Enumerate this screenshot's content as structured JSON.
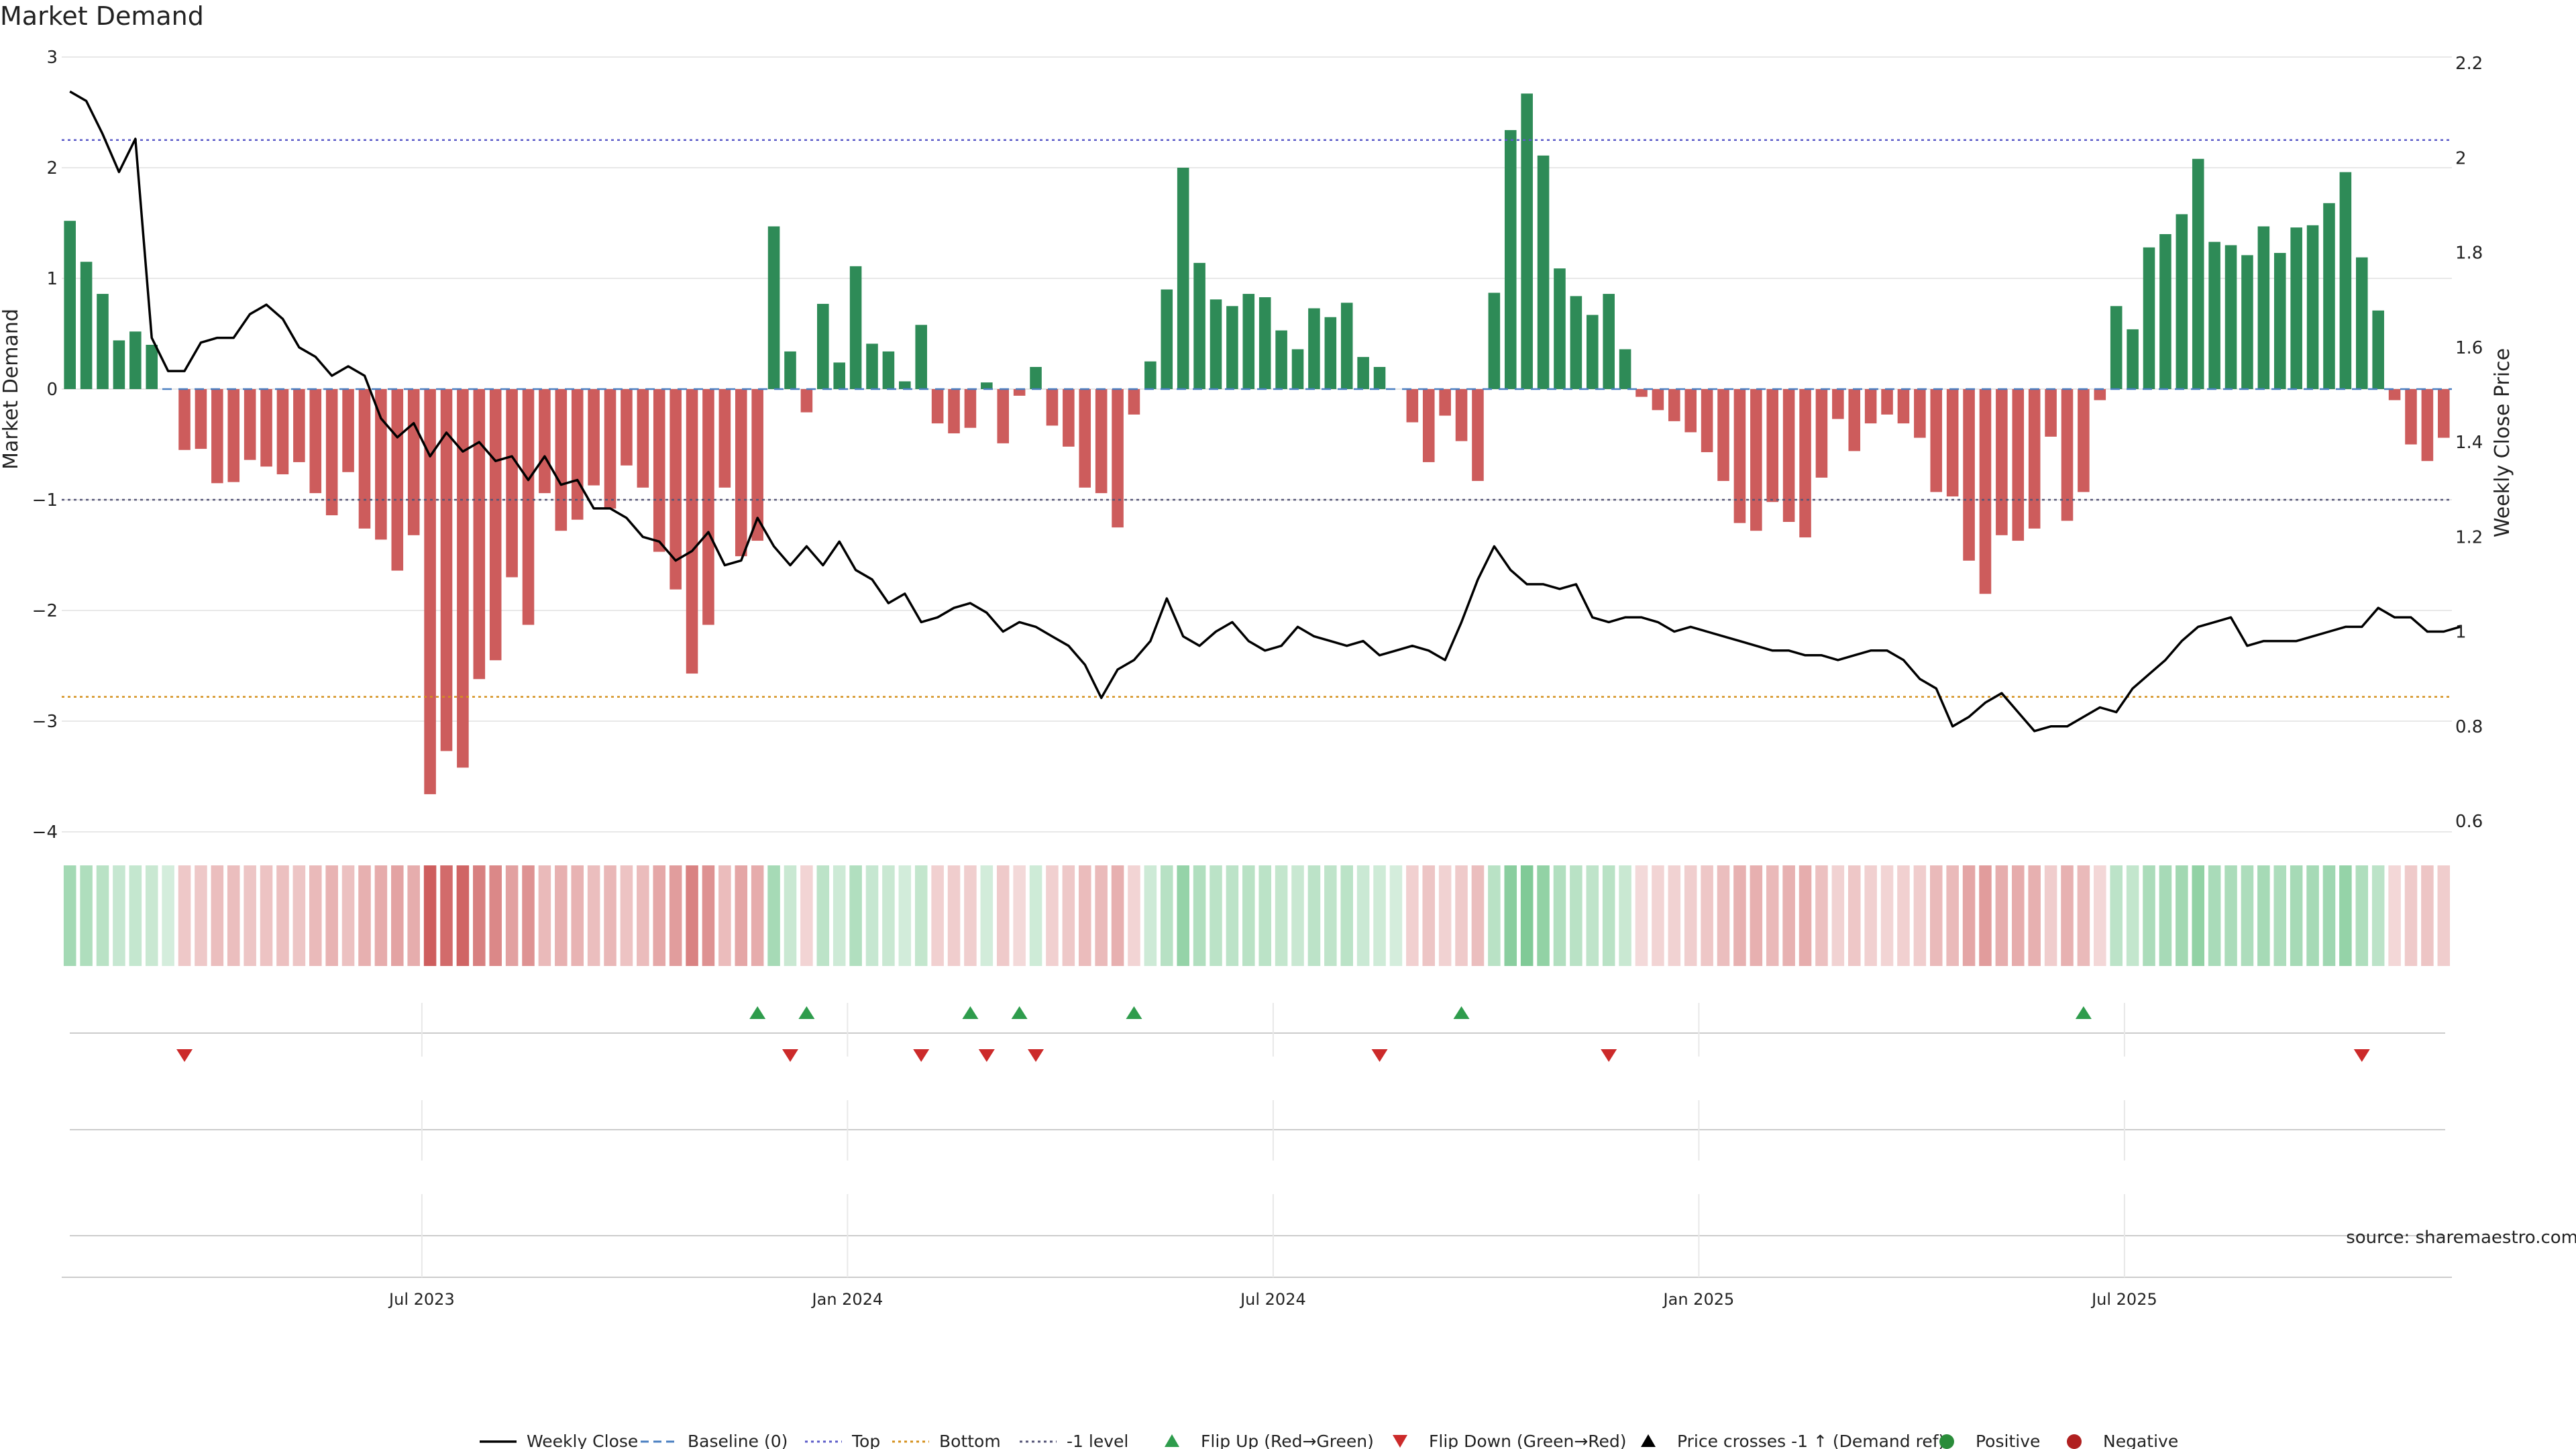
{
  "chart_data": {
    "type": "bar",
    "title": "Market Demand",
    "y_left_label": "Market Demand",
    "y_right_label": "Weekly Close Price",
    "ylim_left": [
      -4,
      3
    ],
    "ylim_right": [
      0.6,
      2.2
    ],
    "y_left_ticks": [
      "3",
      "2",
      "1",
      "0",
      "−1",
      "−2",
      "−3",
      "−4"
    ],
    "y_right_ticks": [
      "2.2",
      "2",
      "1.8",
      "1.6",
      "1.4",
      "1.2",
      "1",
      "0.8",
      "0.6"
    ],
    "x_ticks": [
      {
        "label": "Jul 2023",
        "week": 22
      },
      {
        "label": "Jan 2024",
        "week": 48
      },
      {
        "label": "Jul 2024",
        "week": 74
      },
      {
        "label": "Jan 2025",
        "week": 100
      },
      {
        "label": "Jul 2025",
        "week": 126
      }
    ],
    "reference_lines": {
      "top": 2.25,
      "bottom": -2.78,
      "minus_one": -1,
      "baseline": 0
    },
    "demand": [
      1.52,
      1.15,
      0.86,
      0.44,
      0.52,
      0.4,
      0,
      -0.55,
      -0.54,
      -0.85,
      -0.84,
      -0.64,
      -0.7,
      -0.77,
      -0.66,
      -0.94,
      -1.14,
      -0.75,
      -1.26,
      -1.36,
      -1.64,
      -1.32,
      -3.66,
      -3.27,
      -3.42,
      -2.62,
      -2.45,
      -1.7,
      -2.13,
      -0.94,
      -1.28,
      -1.18,
      -0.87,
      -1.08,
      -0.69,
      -0.89,
      -1.47,
      -1.81,
      -2.57,
      -2.13,
      -0.89,
      -1.51,
      -1.37,
      1.47,
      0.34,
      -0.21,
      0.77,
      0.24,
      1.11,
      0.41,
      0.34,
      0.07,
      0.58,
      -0.31,
      -0.4,
      -0.35,
      0.06,
      -0.49,
      -0.06,
      0.2,
      -0.33,
      -0.52,
      -0.89,
      -0.94,
      -1.25,
      -0.23,
      0.25,
      0.9,
      2.0,
      1.14,
      0.81,
      0.75,
      0.86,
      0.83,
      0.53,
      0.36,
      0.73,
      0.65,
      0.78,
      0.29,
      0.2,
      0,
      -0.3,
      -0.66,
      -0.24,
      -0.47,
      -0.83,
      0.87,
      2.34,
      2.67,
      2.11,
      1.09,
      0.84,
      0.67,
      0.86,
      0.36,
      -0.07,
      -0.19,
      -0.29,
      -0.39,
      -0.57,
      -0.83,
      -1.21,
      -1.28,
      -1.02,
      -1.2,
      -1.34,
      -0.8,
      -0.27,
      -0.56,
      -0.31,
      -0.23,
      -0.31,
      -0.44,
      -0.93,
      -0.97,
      -1.55,
      -1.85,
      -1.32,
      -1.37,
      -1.26,
      -0.43,
      -1.19,
      -0.93,
      -0.1,
      0.75,
      0.54,
      1.28,
      1.4,
      1.58,
      2.08,
      1.33,
      1.3,
      1.21,
      1.47,
      1.23,
      1.46,
      1.48,
      1.68,
      1.96,
      1.19,
      0.71,
      -0.1,
      -0.5,
      -0.65,
      -0.44
    ],
    "price": [
      2.14,
      2.12,
      2.05,
      1.97,
      2.04,
      1.62,
      1.55,
      1.55,
      1.61,
      1.62,
      1.62,
      1.67,
      1.69,
      1.66,
      1.6,
      1.58,
      1.54,
      1.56,
      1.54,
      1.45,
      1.41,
      1.44,
      1.37,
      1.42,
      1.38,
      1.4,
      1.36,
      1.37,
      1.32,
      1.37,
      1.31,
      1.32,
      1.26,
      1.26,
      1.24,
      1.2,
      1.19,
      1.15,
      1.17,
      1.21,
      1.14,
      1.15,
      1.24,
      1.18,
      1.14,
      1.18,
      1.14,
      1.19,
      1.13,
      1.11,
      1.06,
      1.08,
      1.02,
      1.03,
      1.05,
      1.06,
      1.04,
      1.0,
      1.02,
      1.01,
      0.99,
      0.97,
      0.93,
      0.86,
      0.92,
      0.94,
      0.98,
      1.07,
      0.99,
      0.97,
      1.0,
      1.02,
      0.98,
      0.96,
      0.97,
      1.01,
      0.99,
      0.98,
      0.97,
      0.98,
      0.95,
      0.96,
      0.97,
      0.96,
      0.94,
      1.02,
      1.11,
      1.18,
      1.13,
      1.1,
      1.1,
      1.09,
      1.1,
      1.03,
      1.02,
      1.03,
      1.03,
      1.02,
      1.0,
      1.01,
      1.0,
      0.99,
      0.98,
      0.97,
      0.96,
      0.96,
      0.95,
      0.95,
      0.94,
      0.95,
      0.96,
      0.96,
      0.94,
      0.9,
      0.88,
      0.8,
      0.82,
      0.85,
      0.87,
      0.83,
      0.79,
      0.8,
      0.8,
      0.82,
      0.84,
      0.83,
      0.88,
      0.91,
      0.94,
      0.98,
      1.01,
      1.02,
      1.03,
      0.97,
      0.98,
      0.98,
      0.98,
      0.99,
      1.0,
      1.01,
      1.01,
      1.05,
      1.03,
      1.03,
      1.0,
      1.0,
      1.01
    ],
    "flip_up_weeks": [
      42,
      45,
      55,
      58,
      65,
      85,
      123
    ],
    "flip_down_weeks": [
      7,
      44,
      52,
      56,
      59,
      80,
      94,
      140
    ],
    "legend": [
      {
        "label": "Weekly Close",
        "symbol": "line",
        "color": "#000000"
      },
      {
        "label": "Baseline (0)",
        "symbol": "dash",
        "color": "#4a7fc1"
      },
      {
        "label": "Top",
        "symbol": "dot",
        "color": "#5b5bc8"
      },
      {
        "label": "Bottom",
        "symbol": "dot",
        "color": "#d4901c"
      },
      {
        "label": "-1 level",
        "symbol": "dot",
        "color": "#555577"
      },
      {
        "label": "Flip Up (Red→Green)",
        "symbol": "tri-up",
        "color": "#2e9c4c"
      },
      {
        "label": "Flip Down (Green→Red)",
        "symbol": "tri-down",
        "color": "#cc2a2a"
      },
      {
        "label": "Price crosses -1 ↑ (Demand ref)",
        "symbol": "tri-up",
        "color": "#000000"
      },
      {
        "label": "Positive",
        "symbol": "dot-circle",
        "color": "#2a8c3a"
      },
      {
        "label": "Negative",
        "symbol": "dot-circle",
        "color": "#b02020"
      }
    ],
    "source": "source: sharemaestro.com",
    "colors": {
      "positive": "#2e8b57",
      "negative": "#cd5c5c",
      "grid": "#e8e8e8"
    }
  }
}
